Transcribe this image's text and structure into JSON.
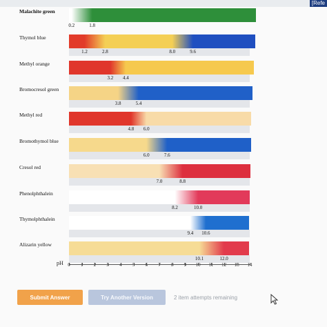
{
  "header": {
    "ref_link": "[Refe"
  },
  "ph_axis": {
    "label": "pH",
    "ticks": [
      "0",
      "1",
      "2",
      "3",
      "4",
      "5",
      "6",
      "7",
      "8",
      "9",
      "10",
      "11",
      "12",
      "13",
      "14"
    ]
  },
  "indicators": [
    {
      "name": "Malachite green",
      "v1": "0.2",
      "v2": "1.8",
      "c1": "#ffffff",
      "c2": "#2e8f3a",
      "r1": 0.2,
      "r2": 1.8
    },
    {
      "name": "Thymol blue",
      "v1": "1.2",
      "v2": "2.8",
      "v3": "8.0",
      "v4": "9.6",
      "c1": "#e23b2a",
      "c2": "#f4cf55",
      "c3": "#1f4fc0",
      "r1": 1.2,
      "r2": 2.8,
      "r3": 8.0,
      "r4": 9.6
    },
    {
      "name": "Methyl orange",
      "v1": "3.2",
      "v2": "4.4",
      "c1": "#e0362b",
      "c2": "#f6c94e",
      "r1": 3.2,
      "r2": 4.4
    },
    {
      "name": "Bromocresol green",
      "v1": "3.8",
      "v2": "5.4",
      "c1": "#f5d486",
      "c2": "#2060c8",
      "r1": 3.8,
      "r2": 5.4
    },
    {
      "name": "Methyl red",
      "v1": "4.8",
      "v2": "6.0",
      "c1": "#e0362b",
      "c2": "#f8dba8",
      "r1": 4.8,
      "r2": 6.0
    },
    {
      "name": "Bromothymol blue",
      "v1": "6.0",
      "v2": "7.6",
      "c1": "#f6d98c",
      "c2": "#1f60c8",
      "r1": 6.0,
      "r2": 7.6
    },
    {
      "name": "Cresol red",
      "v1": "7.0",
      "v2": "8.8",
      "c1": "#f8e0b4",
      "c2": "#dd2f3e",
      "r1": 7.0,
      "r2": 8.8
    },
    {
      "name": "Phenolphthalein",
      "v1": "8.2",
      "v2": "10.0",
      "c1": "#ffffff",
      "c2": "#e23a5a",
      "r1": 8.2,
      "r2": 10.0
    },
    {
      "name": "Thymolphthalein",
      "v1": "9.4",
      "v2": "10.6",
      "c1": "#ffffff",
      "c2": "#1f6fcf",
      "r1": 9.4,
      "r2": 10.6
    },
    {
      "name": "Alizarin yellow",
      "v1": "10.1",
      "v2": "12.0",
      "c1": "#f6dc96",
      "c2": "#e23b4c",
      "r1": 10.1,
      "r2": 12.0
    }
  ],
  "actions": {
    "submit": "Submit Answer",
    "try_another": "Try Another Version",
    "attempts": "2 item attempts remaining"
  }
}
